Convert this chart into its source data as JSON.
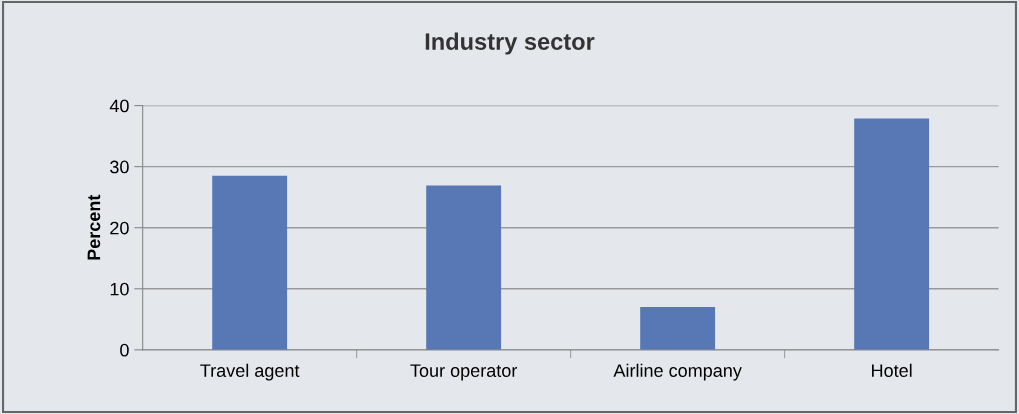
{
  "chart_data": {
    "type": "bar",
    "title": "Industry sector",
    "ylabel": "Percent",
    "categories": [
      "Travel agent",
      "Tour operator",
      "Airline company",
      "Hotel"
    ],
    "values": [
      28.5,
      26.9,
      7.0,
      37.9
    ],
    "color": "#5877b5",
    "ylim": [
      0,
      40
    ],
    "yticks": [
      0,
      10,
      20,
      30,
      40
    ],
    "grid": "y"
  }
}
